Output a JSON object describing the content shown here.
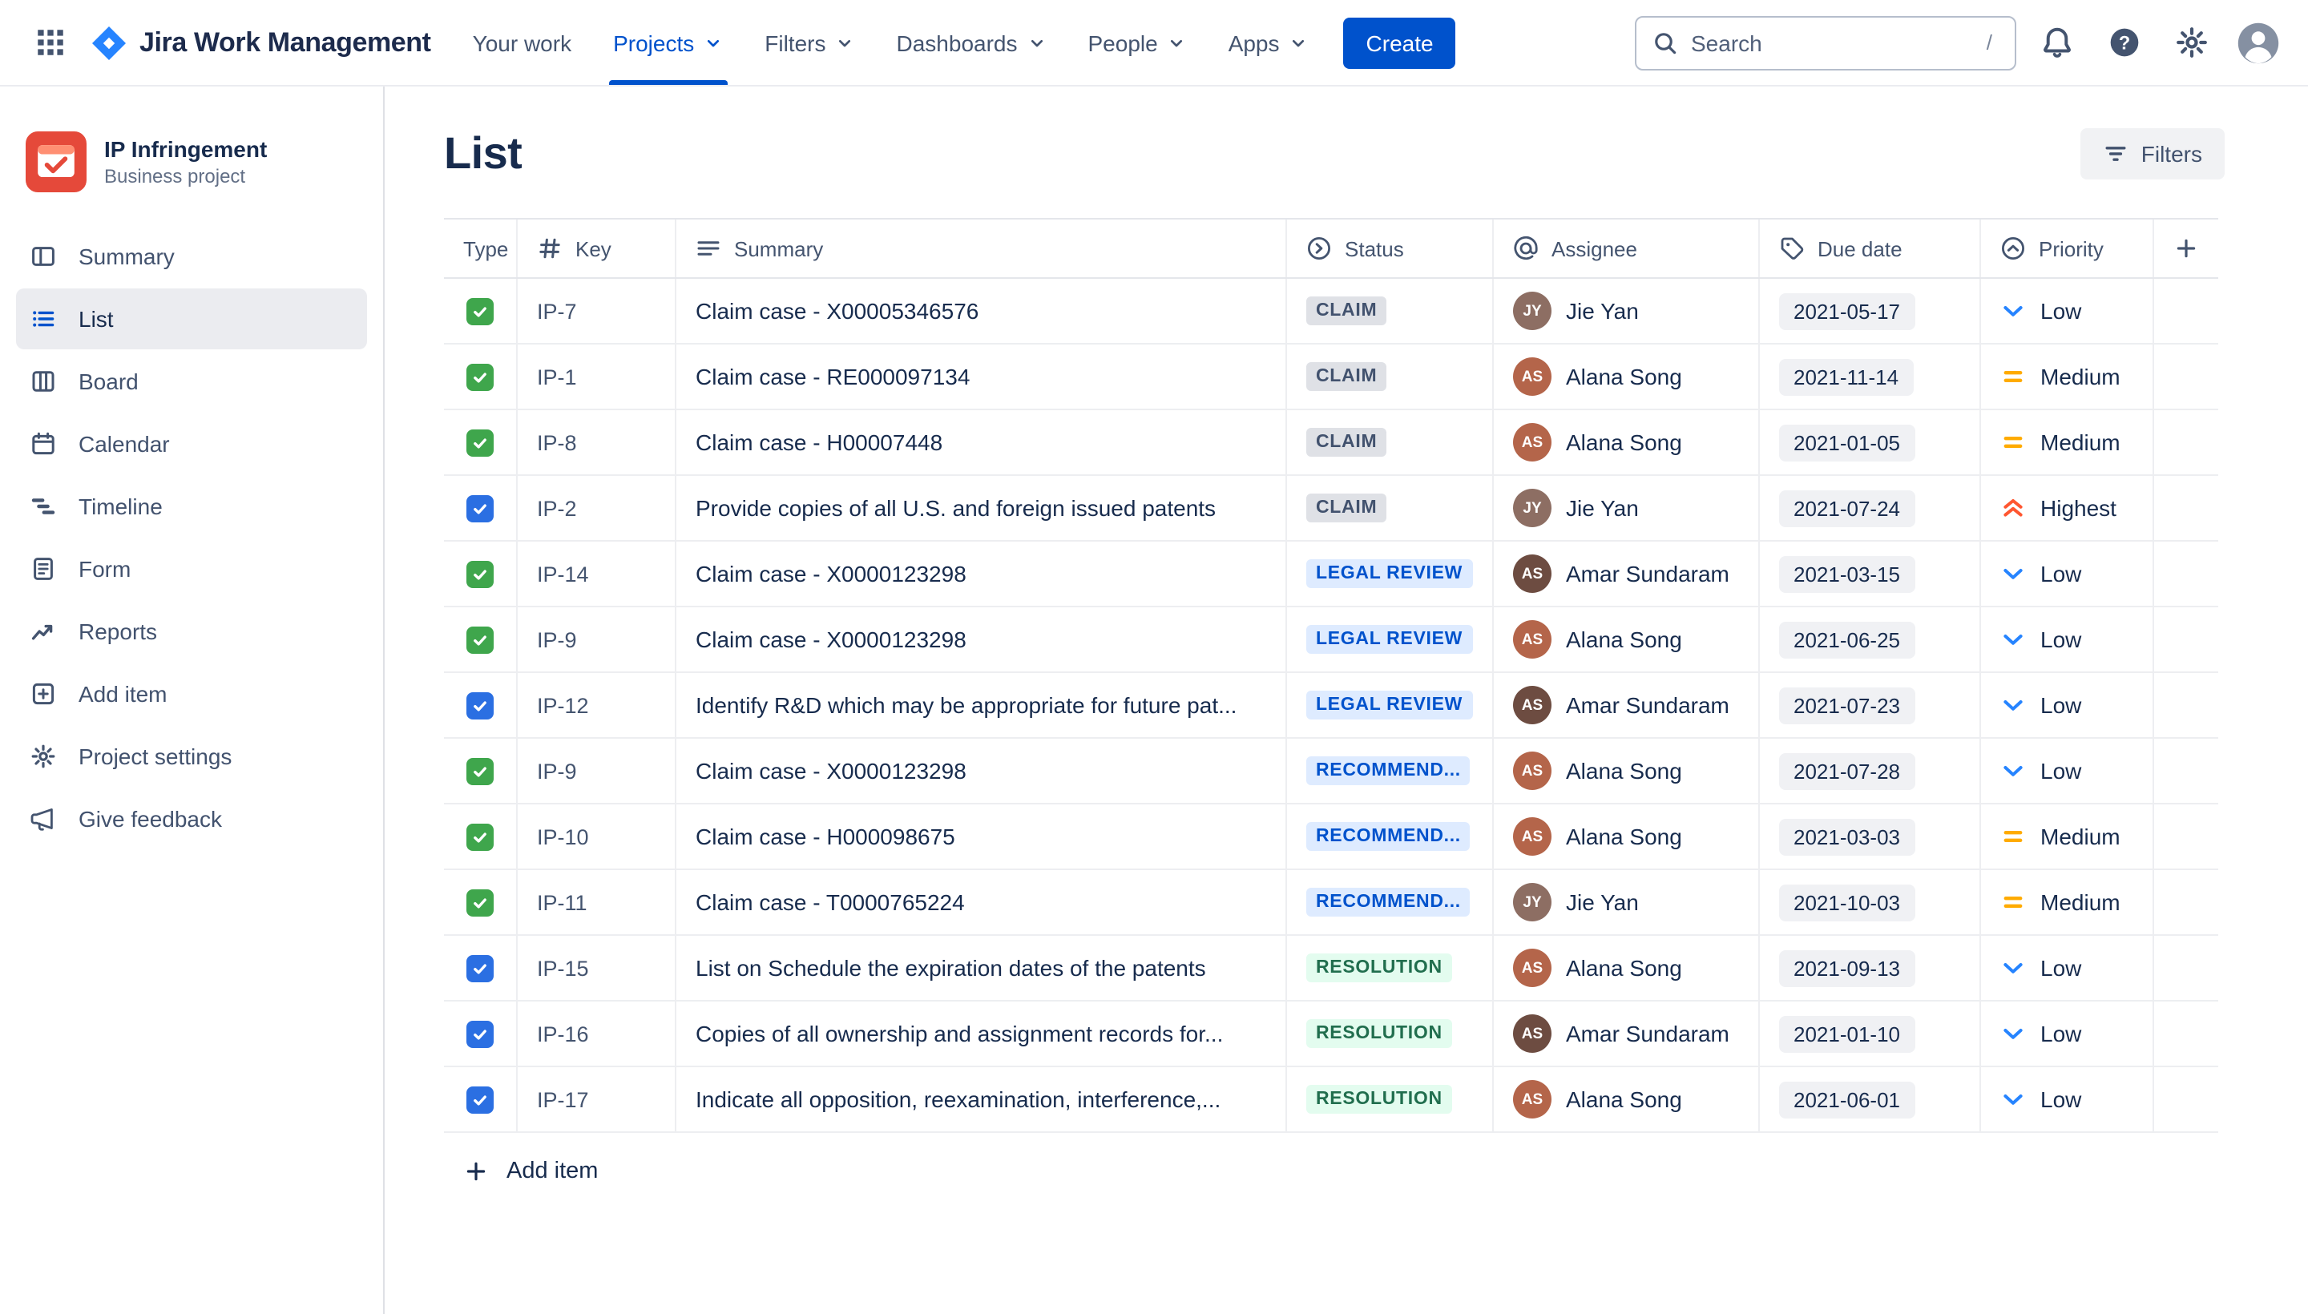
{
  "topnav": {
    "brand": "Jira Work Management",
    "items": [
      {
        "label": "Your work",
        "caret": false,
        "active": false
      },
      {
        "label": "Projects",
        "caret": true,
        "active": true
      },
      {
        "label": "Filters",
        "caret": true,
        "active": false
      },
      {
        "label": "Dashboards",
        "caret": true,
        "active": false
      },
      {
        "label": "People",
        "caret": true,
        "active": false
      },
      {
        "label": "Apps",
        "caret": true,
        "active": false
      }
    ],
    "create_label": "Create",
    "search": {
      "placeholder": "Search",
      "shortcut": "/"
    }
  },
  "sidebar": {
    "project": {
      "name": "IP Infringement",
      "type": "Business project"
    },
    "items": [
      {
        "label": "Summary",
        "icon": "summary-icon",
        "selected": false
      },
      {
        "label": "List",
        "icon": "list-icon",
        "selected": true
      },
      {
        "label": "Board",
        "icon": "board-icon",
        "selected": false
      },
      {
        "label": "Calendar",
        "icon": "calendar-icon",
        "selected": false
      },
      {
        "label": "Timeline",
        "icon": "timeline-icon",
        "selected": false
      },
      {
        "label": "Form",
        "icon": "form-icon",
        "selected": false
      },
      {
        "label": "Reports",
        "icon": "reports-icon",
        "selected": false
      },
      {
        "label": "Add item",
        "icon": "add-item-icon",
        "selected": false
      },
      {
        "label": "Project settings",
        "icon": "settings-icon",
        "selected": false
      },
      {
        "label": "Give feedback",
        "icon": "feedback-icon",
        "selected": false
      }
    ]
  },
  "main": {
    "title": "List",
    "filters_button": "Filters",
    "add_item_label": "Add item",
    "table": {
      "columns": [
        {
          "label": "Type",
          "icon": null
        },
        {
          "label": "Key",
          "icon": "hash-icon"
        },
        {
          "label": "Summary",
          "icon": "text-lines-icon"
        },
        {
          "label": "Status",
          "icon": "status-icon"
        },
        {
          "label": "Assignee",
          "icon": "at-icon"
        },
        {
          "label": "Due date",
          "icon": "tag-icon"
        },
        {
          "label": "Priority",
          "icon": "priority-icon"
        },
        {
          "label": "",
          "icon": "plus-icon"
        }
      ],
      "rows": [
        {
          "type": "task",
          "key": "IP-7",
          "summary": "Claim case - X00005346576",
          "status": {
            "label": "CLAIM",
            "variant": "gray"
          },
          "assignee": {
            "name": "Jie Yan",
            "initials": "JY",
            "color": "#8D6E63"
          },
          "due": "2021-05-17",
          "priority": {
            "label": "Low",
            "level": "low"
          }
        },
        {
          "type": "task",
          "key": "IP-1",
          "summary": "Claim case - RE000097134",
          "status": {
            "label": "CLAIM",
            "variant": "gray"
          },
          "assignee": {
            "name": "Alana Song",
            "initials": "AS",
            "color": "#B4654A"
          },
          "due": "2021-11-14",
          "priority": {
            "label": "Medium",
            "level": "medium"
          }
        },
        {
          "type": "task",
          "key": "IP-8",
          "summary": "Claim case - H00007448",
          "status": {
            "label": "CLAIM",
            "variant": "gray"
          },
          "assignee": {
            "name": "Alana Song",
            "initials": "AS",
            "color": "#B4654A"
          },
          "due": "2021-01-05",
          "priority": {
            "label": "Medium",
            "level": "medium"
          }
        },
        {
          "type": "check",
          "key": "IP-2",
          "summary": "Provide copies of all U.S. and foreign issued patents",
          "status": {
            "label": "CLAIM",
            "variant": "gray"
          },
          "assignee": {
            "name": "Jie Yan",
            "initials": "JY",
            "color": "#8D6E63"
          },
          "due": "2021-07-24",
          "priority": {
            "label": "Highest",
            "level": "highest"
          }
        },
        {
          "type": "task",
          "key": "IP-14",
          "summary": "Claim case - X0000123298",
          "status": {
            "label": "LEGAL REVIEW",
            "variant": "blue"
          },
          "assignee": {
            "name": "Amar Sundaram",
            "initials": "AS",
            "color": "#6D4C41"
          },
          "due": "2021-03-15",
          "priority": {
            "label": "Low",
            "level": "low"
          }
        },
        {
          "type": "task",
          "key": "IP-9",
          "summary": "Claim case - X0000123298",
          "status": {
            "label": "LEGAL REVIEW",
            "variant": "blue"
          },
          "assignee": {
            "name": "Alana Song",
            "initials": "AS",
            "color": "#B4654A"
          },
          "due": "2021-06-25",
          "priority": {
            "label": "Low",
            "level": "low"
          }
        },
        {
          "type": "check",
          "key": "IP-12",
          "summary": "Identify R&D which may be appropriate for future pat...",
          "status": {
            "label": "LEGAL REVIEW",
            "variant": "blue"
          },
          "assignee": {
            "name": "Amar Sundaram",
            "initials": "AS",
            "color": "#6D4C41"
          },
          "due": "2021-07-23",
          "priority": {
            "label": "Low",
            "level": "low"
          }
        },
        {
          "type": "task",
          "key": "IP-9",
          "summary": "Claim case - X0000123298",
          "status": {
            "label": "RECOMMEND...",
            "variant": "blue"
          },
          "assignee": {
            "name": "Alana Song",
            "initials": "AS",
            "color": "#B4654A"
          },
          "due": "2021-07-28",
          "priority": {
            "label": "Low",
            "level": "low"
          }
        },
        {
          "type": "task",
          "key": "IP-10",
          "summary": "Claim case - H000098675",
          "status": {
            "label": "RECOMMEND...",
            "variant": "blue"
          },
          "assignee": {
            "name": "Alana Song",
            "initials": "AS",
            "color": "#B4654A"
          },
          "due": "2021-03-03",
          "priority": {
            "label": "Medium",
            "level": "medium"
          }
        },
        {
          "type": "task",
          "key": "IP-11",
          "summary": "Claim case - T0000765224",
          "status": {
            "label": "RECOMMEND...",
            "variant": "blue"
          },
          "assignee": {
            "name": "Jie Yan",
            "initials": "JY",
            "color": "#8D6E63"
          },
          "due": "2021-10-03",
          "priority": {
            "label": "Medium",
            "level": "medium"
          }
        },
        {
          "type": "check",
          "key": "IP-15",
          "summary": "List on Schedule the expiration dates of the patents",
          "status": {
            "label": "RESOLUTION",
            "variant": "green"
          },
          "assignee": {
            "name": "Alana Song",
            "initials": "AS",
            "color": "#B4654A"
          },
          "due": "2021-09-13",
          "priority": {
            "label": "Low",
            "level": "low"
          }
        },
        {
          "type": "check",
          "key": "IP-16",
          "summary": "Copies of all ownership and assignment records for...",
          "status": {
            "label": "RESOLUTION",
            "variant": "green"
          },
          "assignee": {
            "name": "Amar Sundaram",
            "initials": "AS",
            "color": "#6D4C41"
          },
          "due": "2021-01-10",
          "priority": {
            "label": "Low",
            "level": "low"
          }
        },
        {
          "type": "check",
          "key": "IP-17",
          "summary": "Indicate all opposition, reexamination, interference,...",
          "status": {
            "label": "RESOLUTION",
            "variant": "green"
          },
          "assignee": {
            "name": "Alana Song",
            "initials": "AS",
            "color": "#B4654A"
          },
          "due": "2021-06-01",
          "priority": {
            "label": "Low",
            "level": "low"
          }
        }
      ]
    }
  },
  "colors": {
    "brand_blue": "#0052CC",
    "status_gray_bg": "#DFE1E6",
    "status_gray_text": "#42526E",
    "status_blue_bg": "#DEEBFF",
    "status_blue_text": "#0052CC",
    "status_green_bg": "#E3FCEF",
    "status_green_text": "#216E4E",
    "priority_low": "#2684FF",
    "priority_medium": "#FFAB00",
    "priority_highest": "#FF5630",
    "type_task_green": "#3FA64C",
    "type_check_blue": "#2B6FE2",
    "due_chip_bg": "#F0F1F4"
  }
}
